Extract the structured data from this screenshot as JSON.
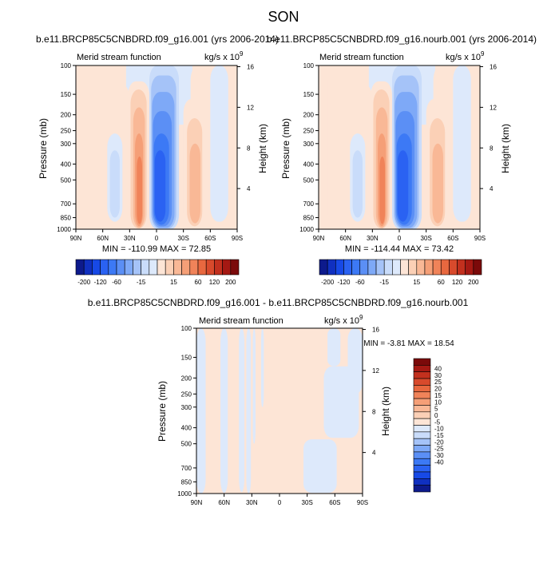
{
  "page": {
    "main_title": "SON"
  },
  "colors": {
    "neg": [
      "#0d1a8c",
      "#1030c0",
      "#1749e6",
      "#2a62f2",
      "#3c79f5",
      "#5b8ff5",
      "#7ea9f7",
      "#a5c3f8",
      "#c9dcfa",
      "#dde9fb"
    ],
    "pos": [
      "#fde5d6",
      "#fbd0b6",
      "#f9b896",
      "#f59f77",
      "#f08359",
      "#e8683f",
      "#d84a2c",
      "#c2301e",
      "#a51913",
      "#7b0a0a"
    ]
  },
  "chart_data": [
    {
      "id": "panel-1",
      "type": "heatmap",
      "title": "b.e11.BRCP85C5CNBDRD.f09_g16.001 (yrs 2006-2014)",
      "corner_label": "Merid stream function",
      "units_base": "kg/s x 10",
      "units_exp": "9",
      "ylabel": "Pressure (mb)",
      "ylabel_right": "Height (km)",
      "x_ticks": [
        "90N",
        "60N",
        "30N",
        "0",
        "30S",
        "60S",
        "90S"
      ],
      "y_ticks": [
        "100",
        "150",
        "200",
        "250",
        "300",
        "400",
        "500",
        "700",
        "850",
        "1000"
      ],
      "y_right_ticks": [
        "16",
        "12",
        "8",
        "4"
      ],
      "min_max": "MIN = -110.99  MAX = 72.85",
      "cells": [
        {
          "lat": [
            12,
            30
          ],
          "p": [
            100,
            980
          ],
          "lvl": -1
        },
        {
          "lat": [
            -38,
            -60
          ],
          "p": [
            100,
            980
          ],
          "lvl": 1
        },
        {
          "lat": [
            -60,
            -80
          ],
          "p": [
            100,
            900
          ],
          "lvl": -1
        },
        {
          "lat": [
            50,
            30
          ],
          "p": [
            130,
            920
          ],
          "lvl": 1
        },
        {
          "lat": [
            80,
            90
          ],
          "p": [
            100,
            1000
          ],
          "lvl": 1
        },
        {
          "lat": [
            55,
            38
          ],
          "p": [
            260,
            900
          ],
          "lvl": -1
        },
        {
          "lat": [
            52,
            41
          ],
          "p": [
            330,
            850
          ],
          "lvl": -2
        },
        {
          "lat": [
            32,
            8
          ],
          "p": [
            125,
            1000
          ],
          "lvl": 1
        },
        {
          "lat": [
            29,
            11
          ],
          "p": [
            140,
            990
          ],
          "lvl": 2
        },
        {
          "lat": [
            26,
            13
          ],
          "p": [
            180,
            980
          ],
          "lvl": 3
        },
        {
          "lat": [
            24,
            15
          ],
          "p": [
            260,
            960
          ],
          "lvl": 4
        },
        {
          "lat": [
            22,
            16
          ],
          "p": [
            360,
            930
          ],
          "lvl": 5
        },
        {
          "lat": [
            8,
            -25
          ],
          "p": [
            100,
            1000
          ],
          "lvl": -2
        },
        {
          "lat": [
            6,
            -22
          ],
          "p": [
            115,
            990
          ],
          "lvl": -3
        },
        {
          "lat": [
            5,
            -20
          ],
          "p": [
            145,
            980
          ],
          "lvl": -4
        },
        {
          "lat": [
            4,
            -17
          ],
          "p": [
            190,
            960
          ],
          "lvl": -5
        },
        {
          "lat": [
            3,
            -14
          ],
          "p": [
            260,
            940
          ],
          "lvl": -6
        },
        {
          "lat": [
            2,
            -10
          ],
          "p": [
            330,
            900
          ],
          "lvl": -7
        },
        {
          "lat": [
            -30,
            -53
          ],
          "p": [
            160,
            980
          ],
          "lvl": 1
        },
        {
          "lat": [
            -34,
            -51
          ],
          "p": [
            210,
            960
          ],
          "lvl": 2
        },
        {
          "lat": [
            -37,
            -49
          ],
          "p": [
            300,
            920
          ],
          "lvl": 3
        }
      ]
    },
    {
      "id": "panel-2",
      "type": "heatmap",
      "title": "b.e11.BRCP85C5CNBDRD.f09_g16.nourb.001 (yrs 2006-2014)",
      "corner_label": "Merid stream function",
      "units_base": "kg/s x 10",
      "units_exp": "9",
      "ylabel": "Pressure (mb)",
      "ylabel_right": "Height (km)",
      "x_ticks": [
        "90N",
        "60N",
        "30N",
        "0",
        "30S",
        "60S",
        "90S"
      ],
      "y_ticks": [
        "100",
        "150",
        "200",
        "250",
        "300",
        "400",
        "500",
        "700",
        "850",
        "1000"
      ],
      "y_right_ticks": [
        "16",
        "12",
        "8",
        "4"
      ],
      "min_max": "MIN = -114.44  MAX = 73.42",
      "cells": [
        {
          "lat": [
            12,
            30
          ],
          "p": [
            100,
            980
          ],
          "lvl": -1
        },
        {
          "lat": [
            -38,
            -60
          ],
          "p": [
            100,
            980
          ],
          "lvl": 1
        },
        {
          "lat": [
            -60,
            -80
          ],
          "p": [
            100,
            900
          ],
          "lvl": -1
        },
        {
          "lat": [
            50,
            30
          ],
          "p": [
            130,
            920
          ],
          "lvl": 1
        },
        {
          "lat": [
            80,
            90
          ],
          "p": [
            100,
            1000
          ],
          "lvl": 1
        },
        {
          "lat": [
            55,
            38
          ],
          "p": [
            260,
            900
          ],
          "lvl": -1
        },
        {
          "lat": [
            52,
            41
          ],
          "p": [
            330,
            850
          ],
          "lvl": -2
        },
        {
          "lat": [
            32,
            8
          ],
          "p": [
            125,
            1000
          ],
          "lvl": 1
        },
        {
          "lat": [
            29,
            11
          ],
          "p": [
            140,
            990
          ],
          "lvl": 2
        },
        {
          "lat": [
            26,
            13
          ],
          "p": [
            180,
            980
          ],
          "lvl": 3
        },
        {
          "lat": [
            24,
            15
          ],
          "p": [
            260,
            960
          ],
          "lvl": 4
        },
        {
          "lat": [
            22,
            16
          ],
          "p": [
            360,
            930
          ],
          "lvl": 5
        },
        {
          "lat": [
            8,
            -25
          ],
          "p": [
            100,
            1000
          ],
          "lvl": -2
        },
        {
          "lat": [
            6,
            -22
          ],
          "p": [
            115,
            990
          ],
          "lvl": -3
        },
        {
          "lat": [
            5,
            -20
          ],
          "p": [
            145,
            980
          ],
          "lvl": -4
        },
        {
          "lat": [
            4,
            -17
          ],
          "p": [
            190,
            960
          ],
          "lvl": -5
        },
        {
          "lat": [
            3,
            -14
          ],
          "p": [
            260,
            940
          ],
          "lvl": -6
        },
        {
          "lat": [
            2,
            -10
          ],
          "p": [
            330,
            900
          ],
          "lvl": -7
        },
        {
          "lat": [
            -30,
            -53
          ],
          "p": [
            160,
            980
          ],
          "lvl": 1
        },
        {
          "lat": [
            -34,
            -51
          ],
          "p": [
            210,
            960
          ],
          "lvl": 2
        },
        {
          "lat": [
            -37,
            -49
          ],
          "p": [
            300,
            920
          ],
          "lvl": 3
        }
      ]
    },
    {
      "id": "panel-3",
      "type": "heatmap",
      "title": "b.e11.BRCP85C5CNBDRD.f09_g16.001 - b.e11.BRCP85C5CNBDRD.f09_g16.nourb.001",
      "corner_label": "Merid stream function",
      "units_base": "kg/s x 10",
      "units_exp": "9",
      "ylabel": "Pressure (mb)",
      "ylabel_right": "Height (km)",
      "x_ticks": [
        "90N",
        "60N",
        "30N",
        "0",
        "30S",
        "60S",
        "90S"
      ],
      "y_ticks": [
        "100",
        "150",
        "200",
        "250",
        "300",
        "400",
        "500",
        "700",
        "850",
        "1000"
      ],
      "y_right_ticks": [
        "16",
        "12",
        "8",
        "4"
      ],
      "min_max": "MIN = -3.81  MAX = 18.54",
      "cells": [
        {
          "lat": [
            90,
            80
          ],
          "p": [
            100,
            1000
          ],
          "lvl": -1
        },
        {
          "lat": [
            64,
            56
          ],
          "p": [
            100,
            990
          ],
          "lvl": -1
        },
        {
          "lat": [
            44,
            38
          ],
          "p": [
            100,
            980
          ],
          "lvl": -1
        },
        {
          "lat": [
            36,
            31
          ],
          "p": [
            100,
            1000
          ],
          "lvl": -1
        },
        {
          "lat": [
            29,
            26
          ],
          "p": [
            100,
            500
          ],
          "lvl": -1
        },
        {
          "lat": [
            20,
            17
          ],
          "p": [
            100,
            300
          ],
          "lvl": -1
        },
        {
          "lat": [
            -26,
            -62
          ],
          "p": [
            470,
            990
          ],
          "lvl": -1
        },
        {
          "lat": [
            -48,
            -86
          ],
          "p": [
            170,
            460
          ],
          "lvl": -1
        },
        {
          "lat": [
            -52,
            -66
          ],
          "p": [
            100,
            170
          ],
          "lvl": -1
        },
        {
          "lat": [
            -74,
            -90
          ],
          "p": [
            100,
            250
          ],
          "lvl": -1
        }
      ]
    }
  ],
  "colorbars": [
    {
      "id": "cb-1",
      "labels": [
        "-200",
        "-120",
        "-60",
        "-15",
        "15",
        "60",
        "120",
        "200"
      ]
    },
    {
      "id": "cb-2",
      "labels": [
        "-200",
        "-120",
        "-60",
        "-15",
        "15",
        "60",
        "120",
        "200"
      ]
    },
    {
      "id": "cb-3",
      "labels": [
        "40",
        "30",
        "25",
        "20",
        "15",
        "10",
        "5",
        "0",
        "-5",
        "-10",
        "-15",
        "-20",
        "-25",
        "-30",
        "-40"
      ]
    }
  ]
}
